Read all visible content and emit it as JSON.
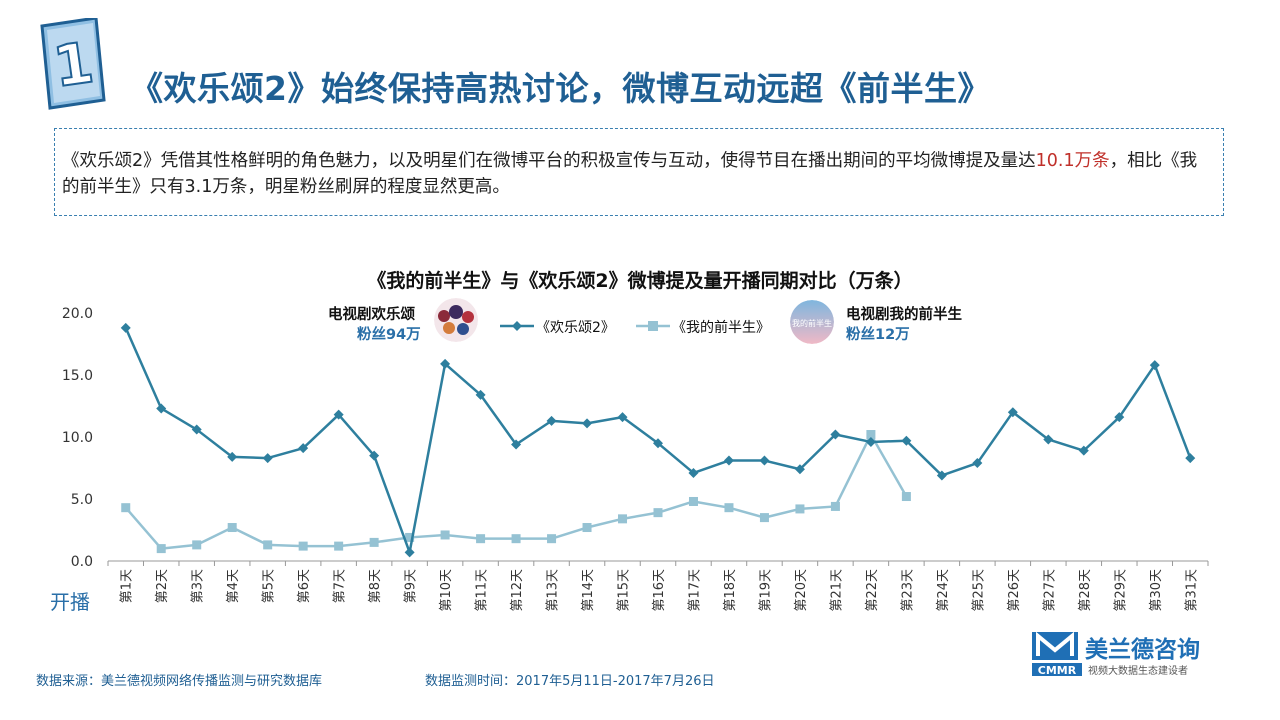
{
  "badge": {
    "number": "1"
  },
  "title": "《欢乐颂2》始终保持高热讨论，微博互动远超《前半生》",
  "description": {
    "part1": "《欢乐颂2》凭借其性格鲜明的角色魅力，以及明星们在微博平台的积极宣传与互动，使得节目在播出期间的平均微博提及量达",
    "highlight": "10.1万条",
    "part2": "，相比《我的前半生》只有3.1万条，明星粉丝刷屏的程度显然更高。"
  },
  "callouts": {
    "left": {
      "name": "电视剧欢乐颂",
      "fans": "粉丝94万"
    },
    "right": {
      "name": "电视剧我的前半生",
      "fans": "粉丝12万",
      "avatar_text": "我的前半生"
    }
  },
  "start_label": "开播",
  "footer": {
    "source": "数据来源：美兰德视频网络传播监测与研究数据库",
    "period": "数据监测时间：2017年5月11日-2017年7月26日"
  },
  "logo": {
    "name": "美兰德咨询",
    "abbr": "CMMR",
    "slogan": "视频大数据生态建设者"
  },
  "colors": {
    "title": "#1f5f93",
    "series1": "#2e7f9e",
    "series2": "#95c2d3",
    "highlight": "#c0302a"
  },
  "chart_data": {
    "type": "line",
    "title": "《我的前半生》与《欢乐颂2》微博提及量开播同期对比（万条）",
    "xlabel": "",
    "ylabel": "",
    "ylim": [
      0,
      20
    ],
    "yticks": [
      "0.0",
      "5.0",
      "10.0",
      "15.0",
      "20.0"
    ],
    "grid": false,
    "legend_position": "top",
    "categories": [
      "第1天",
      "第2天",
      "第3天",
      "第4天",
      "第5天",
      "第6天",
      "第7天",
      "第8天",
      "第9天",
      "第10天",
      "第11天",
      "第12天",
      "第13天",
      "第14天",
      "第15天",
      "第16天",
      "第17天",
      "第18天",
      "第19天",
      "第20天",
      "第21天",
      "第22天",
      "第23天",
      "第24天",
      "第25天",
      "第26天",
      "第27天",
      "第28天",
      "第29天",
      "第30天",
      "第31天"
    ],
    "series": [
      {
        "name": "《欢乐颂2》",
        "color": "#2e7f9e",
        "marker": "diamond",
        "values": [
          18.8,
          12.3,
          10.6,
          8.4,
          8.3,
          9.1,
          11.8,
          8.5,
          0.7,
          15.9,
          13.4,
          9.4,
          11.3,
          11.1,
          11.6,
          9.5,
          7.1,
          8.1,
          8.1,
          7.4,
          10.2,
          9.6,
          9.7,
          6.9,
          7.9,
          12.0,
          9.8,
          8.9,
          11.6,
          15.8,
          8.3
        ]
      },
      {
        "name": "《我的前半生》",
        "color": "#95c2d3",
        "marker": "square",
        "values": [
          4.3,
          1.0,
          1.3,
          2.7,
          1.3,
          1.2,
          1.2,
          1.5,
          1.9,
          2.1,
          1.8,
          1.8,
          1.8,
          2.7,
          3.4,
          3.9,
          4.8,
          4.3,
          3.5,
          4.2,
          4.4,
          10.2,
          5.2,
          null,
          null,
          null,
          null,
          null,
          null,
          null,
          null
        ]
      }
    ]
  }
}
